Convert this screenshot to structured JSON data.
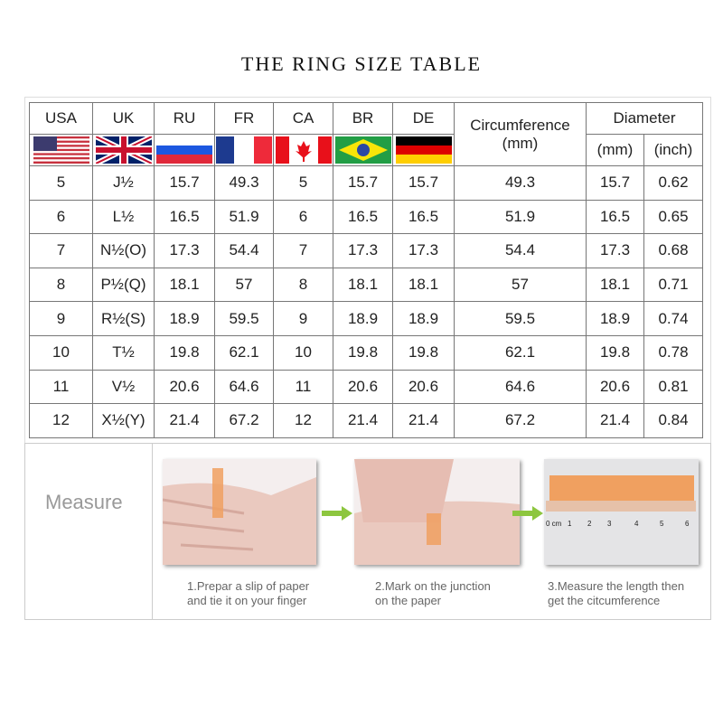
{
  "title": "THE RING SIZE TABLE",
  "headers": {
    "usa": "USA",
    "uk": "UK",
    "ru": "RU",
    "fr": "FR",
    "ca": "CA",
    "br": "BR",
    "de": "DE",
    "circumference": "Circumference",
    "circumference_unit": "(mm)",
    "diameter": "Diameter",
    "mm": "(mm)",
    "inch": "(inch)"
  },
  "flags": [
    "us-flag",
    "uk-flag",
    "russia-flag",
    "france-flag",
    "canada-flag",
    "brazil-flag",
    "germany-flag"
  ],
  "rows": [
    [
      "5",
      "J½",
      "15.7",
      "49.3",
      "5",
      "15.7",
      "15.7",
      "49.3",
      "15.7",
      "0.62"
    ],
    [
      "6",
      "L½",
      "16.5",
      "51.9",
      "6",
      "16.5",
      "16.5",
      "51.9",
      "16.5",
      "0.65"
    ],
    [
      "7",
      "N½(O)",
      "17.3",
      "54.4",
      "7",
      "17.3",
      "17.3",
      "54.4",
      "17.3",
      "0.68"
    ],
    [
      "8",
      "P½(Q)",
      "18.1",
      "57",
      "8",
      "18.1",
      "18.1",
      "57",
      "18.1",
      "0.71"
    ],
    [
      "9",
      "R½(S)",
      "18.9",
      "59.5",
      "9",
      "18.9",
      "18.9",
      "59.5",
      "18.9",
      "0.74"
    ],
    [
      "10",
      "T½",
      "19.8",
      "62.1",
      "10",
      "19.8",
      "19.8",
      "62.1",
      "19.8",
      "0.78"
    ],
    [
      "11",
      "V½",
      "20.6",
      "64.6",
      "11",
      "20.6",
      "20.6",
      "64.6",
      "20.6",
      "0.81"
    ],
    [
      "12",
      "X½(Y)",
      "21.4",
      "67.2",
      "12",
      "21.4",
      "21.4",
      "67.2",
      "21.4",
      "0.84"
    ]
  ],
  "measure": {
    "label": "Measure",
    "steps": [
      {
        "line1": "1.Prepar a slip of paper",
        "line2": "and tie it on your finger"
      },
      {
        "line1": "2.Mark on the junction",
        "line2": "on the paper"
      },
      {
        "line1": "3.Measure the length then",
        "line2": "get the citcumference"
      }
    ],
    "ruler_labels": [
      "0 cm",
      "1",
      "2",
      "3",
      "4",
      "5",
      "6"
    ]
  },
  "colors": {
    "arrow": "#8dc63f",
    "paper": "#f0a060"
  }
}
